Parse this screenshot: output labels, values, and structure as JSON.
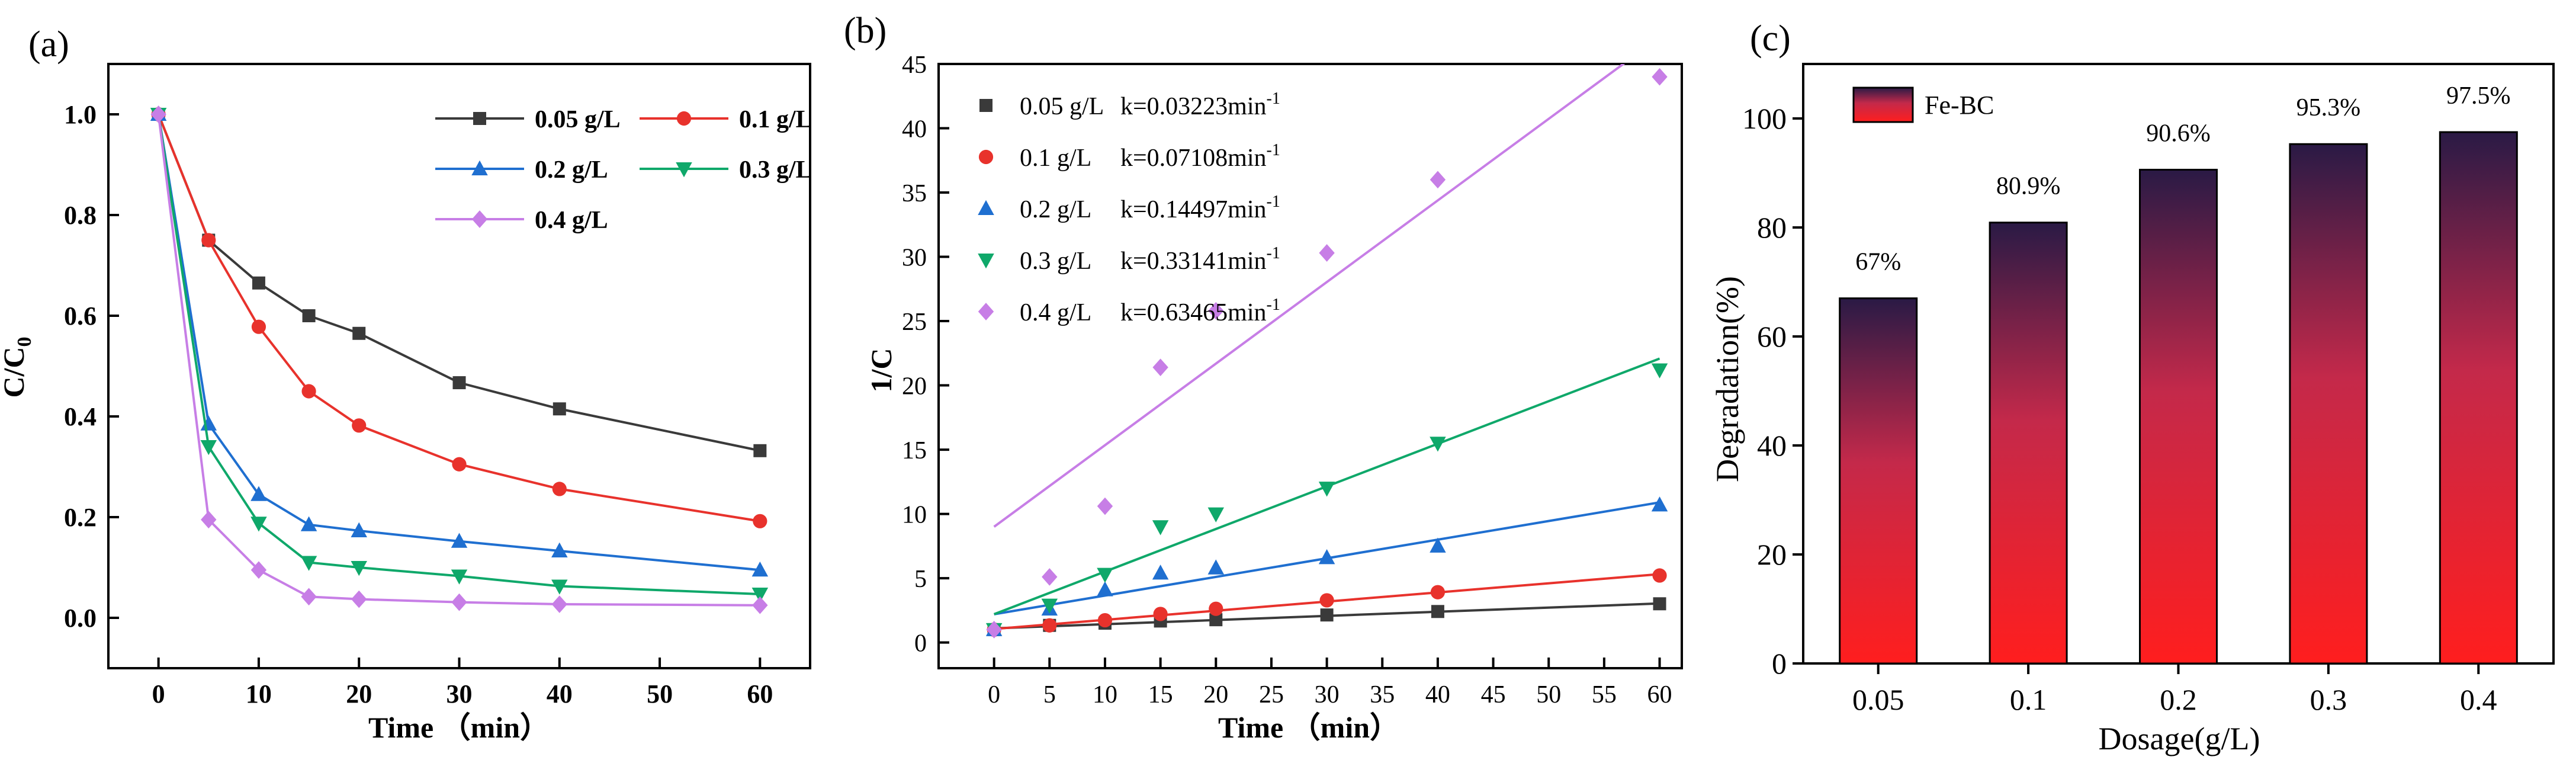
{
  "figure": {
    "panels": [
      {
        "panel_label": "(a)",
        "chart_data": {
          "type": "line",
          "xlabel": "Time （min）",
          "ylabel": "C/C",
          "ylabel_subscript": "0",
          "xlim": [
            -5,
            65
          ],
          "ylim": [
            -0.1,
            1.1
          ],
          "xticks": [
            0,
            10,
            20,
            30,
            40,
            50,
            60
          ],
          "yticks": [
            0.0,
            0.2,
            0.4,
            0.6,
            0.8,
            1.0
          ],
          "x": [
            0,
            5,
            10,
            15,
            20,
            30,
            40,
            60
          ],
          "legend_position": "top-right",
          "series": [
            {
              "name": "0.05 g/L",
              "color": "#3a3a3a",
              "marker": "square",
              "values": [
                1.0,
                0.75,
                0.665,
                0.6,
                0.565,
                0.467,
                0.415,
                0.332
              ]
            },
            {
              "name": "0.1 g/L",
              "color": "#e8322c",
              "marker": "circle",
              "values": [
                1.0,
                0.75,
                0.578,
                0.45,
                0.382,
                0.305,
                0.256,
                0.192
              ]
            },
            {
              "name": "0.2 g/L",
              "color": "#1f6fd0",
              "marker": "triangle-up",
              "values": [
                1.0,
                0.385,
                0.245,
                0.185,
                0.173,
                0.152,
                0.133,
                0.095
              ]
            },
            {
              "name": "0.3 g/L",
              "color": "#0fa86a",
              "marker": "triangle-down",
              "values": [
                1.0,
                0.34,
                0.188,
                0.11,
                0.1,
                0.083,
                0.063,
                0.047
              ]
            },
            {
              "name": "0.4 g/L",
              "color": "#c77ee6",
              "marker": "diamond",
              "values": [
                1.0,
                0.195,
                0.095,
                0.042,
                0.037,
                0.031,
                0.027,
                0.025
              ]
            }
          ]
        }
      },
      {
        "panel_label": "(b)",
        "chart_data": {
          "type": "scatter",
          "xlabel": "Time （min）",
          "ylabel": "1/C",
          "xlim": [
            -5,
            62
          ],
          "ylim": [
            -2,
            45
          ],
          "xticks": [
            0,
            5,
            10,
            15,
            20,
            25,
            30,
            35,
            40,
            45,
            50,
            55,
            60
          ],
          "yticks": [
            0,
            5,
            10,
            15,
            20,
            25,
            30,
            35,
            40,
            45
          ],
          "x": [
            0,
            5,
            10,
            15,
            20,
            30,
            40,
            60
          ],
          "legend_position": "top-left",
          "series": [
            {
              "name": "0.05 g/L",
              "k_label": "k=0.03223min",
              "k_exp": "-1",
              "color": "#3a3a3a",
              "marker": "square",
              "values": [
                1.0,
                1.33,
                1.5,
                1.67,
                1.77,
                2.14,
                2.41,
                3.01
              ],
              "fit": {
                "intercept": 1.1,
                "slope": 0.03223
              }
            },
            {
              "name": "0.1 g/L",
              "k_label": "k=0.07108min",
              "k_exp": "-1",
              "color": "#e8322c",
              "marker": "circle",
              "values": [
                1.0,
                1.33,
                1.73,
                2.22,
                2.62,
                3.28,
                3.91,
                5.21
              ],
              "fit": {
                "intercept": 1.05,
                "slope": 0.07108
              }
            },
            {
              "name": "0.2 g/L",
              "k_label": "k=0.14497min",
              "k_exp": "-1",
              "color": "#1f6fd0",
              "marker": "triangle-up",
              "values": [
                1.0,
                2.6,
                4.1,
                5.4,
                5.8,
                6.6,
                7.5,
                10.7
              ],
              "fit": {
                "intercept": 2.2,
                "slope": 0.14497
              }
            },
            {
              "name": "0.3 g/L",
              "k_label": "k=0.33141min",
              "k_exp": "-1",
              "color": "#0fa86a",
              "marker": "triangle-down",
              "values": [
                1.0,
                2.9,
                5.3,
                9.0,
                10.0,
                12.0,
                15.5,
                21.2
              ],
              "fit": {
                "intercept": 2.2,
                "slope": 0.33141
              }
            },
            {
              "name": "0.4 g/L",
              "k_label": "k=0.63465min",
              "k_exp": "-1",
              "color": "#c77ee6",
              "marker": "diamond",
              "values": [
                1.0,
                5.1,
                10.6,
                21.4,
                25.8,
                30.3,
                36.0,
                44.0
              ],
              "fit": {
                "intercept": 9.0,
                "slope": 0.63465
              }
            }
          ]
        }
      },
      {
        "panel_label": "(c)",
        "chart_data": {
          "type": "bar",
          "xlabel": "Dosage(g/L)",
          "ylabel": "Degradation(%)",
          "categories": [
            "0.05",
            "0.1",
            "0.2",
            "0.3",
            "0.4"
          ],
          "ylim": [
            0,
            110
          ],
          "yticks": [
            0,
            20,
            40,
            60,
            80,
            100
          ],
          "legend_position": "top-left",
          "series": [
            {
              "name": "Fe-BC",
              "values": [
                67,
                80.9,
                90.6,
                95.3,
                97.5
              ],
              "color_top": "#2a1a45",
              "color_bottom": "#ff1e1e"
            }
          ],
          "data_labels": [
            "67%",
            "80.9%",
            "90.6%",
            "95.3%",
            "97.5%"
          ]
        }
      }
    ]
  }
}
